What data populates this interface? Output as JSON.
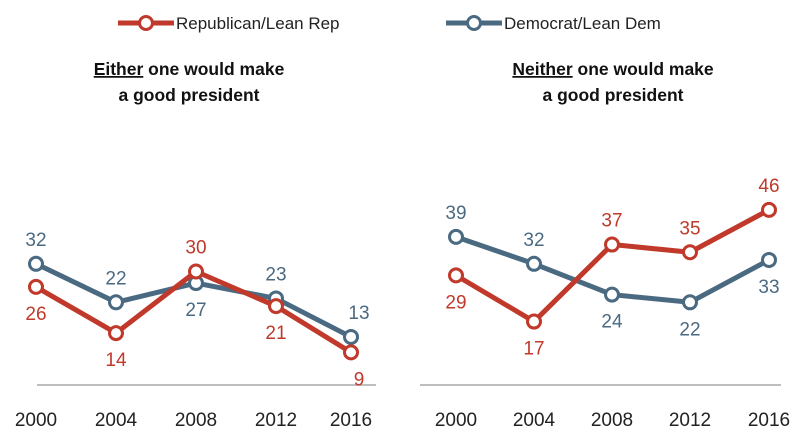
{
  "colors": {
    "republican": "#c0392b",
    "democrat": "#4a6a82",
    "axis": "#a9a9a9"
  },
  "legend": [
    {
      "key": "republican",
      "label": "Republican/Lean Rep"
    },
    {
      "key": "democrat",
      "label": "Democrat/Lean Dem"
    }
  ],
  "chart_data": [
    {
      "type": "line",
      "title_emphasis": "Either",
      "title_rest": " one would make",
      "title_line2": "a good president",
      "x": [
        "2000",
        "2004",
        "2008",
        "2012",
        "2016"
      ],
      "ylim": [
        0,
        50
      ],
      "grid": false,
      "legend_position": "top",
      "series": [
        {
          "key": "republican",
          "name": "Republican/Lean Rep",
          "values": [
            26,
            14,
            30,
            21,
            9
          ]
        },
        {
          "key": "democrat",
          "name": "Democrat/Lean Dem",
          "values": [
            32,
            22,
            27,
            23,
            13
          ]
        }
      ]
    },
    {
      "type": "line",
      "title_emphasis": "Neither",
      "title_rest": " one would make",
      "title_line2": "a good president",
      "x": [
        "2000",
        "2004",
        "2008",
        "2012",
        "2016"
      ],
      "ylim": [
        0,
        50
      ],
      "grid": false,
      "legend_position": "top",
      "series": [
        {
          "key": "republican",
          "name": "Republican/Lean Rep",
          "values": [
            29,
            17,
            37,
            35,
            46
          ]
        },
        {
          "key": "democrat",
          "name": "Democrat/Lean Dem",
          "values": [
            39,
            32,
            24,
            22,
            33
          ]
        }
      ]
    }
  ]
}
